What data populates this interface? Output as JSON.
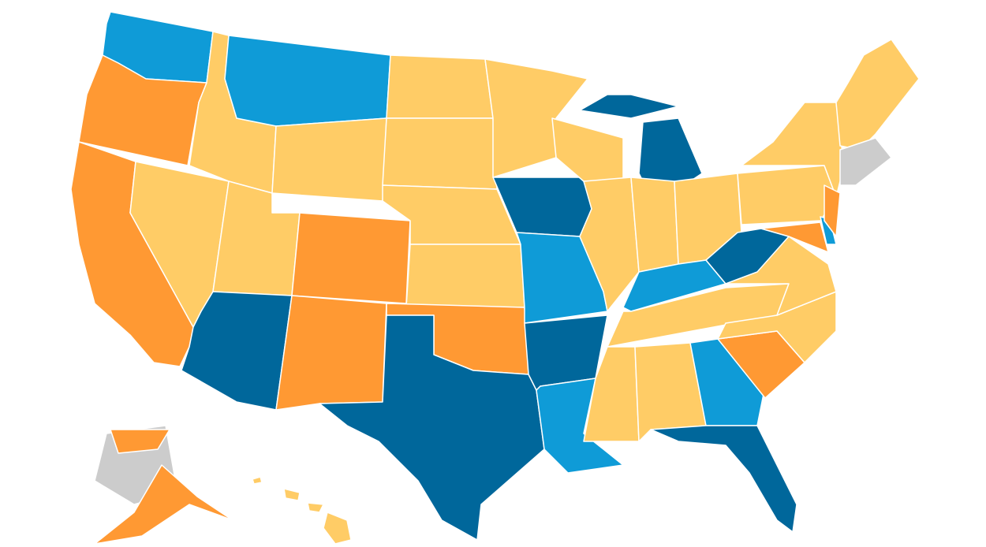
{
  "map": {
    "colors": [
      "#00679b",
      "#0f9bd7",
      "#ffcc66",
      "#ff9933",
      "#cccccc"
    ]
  }
}
